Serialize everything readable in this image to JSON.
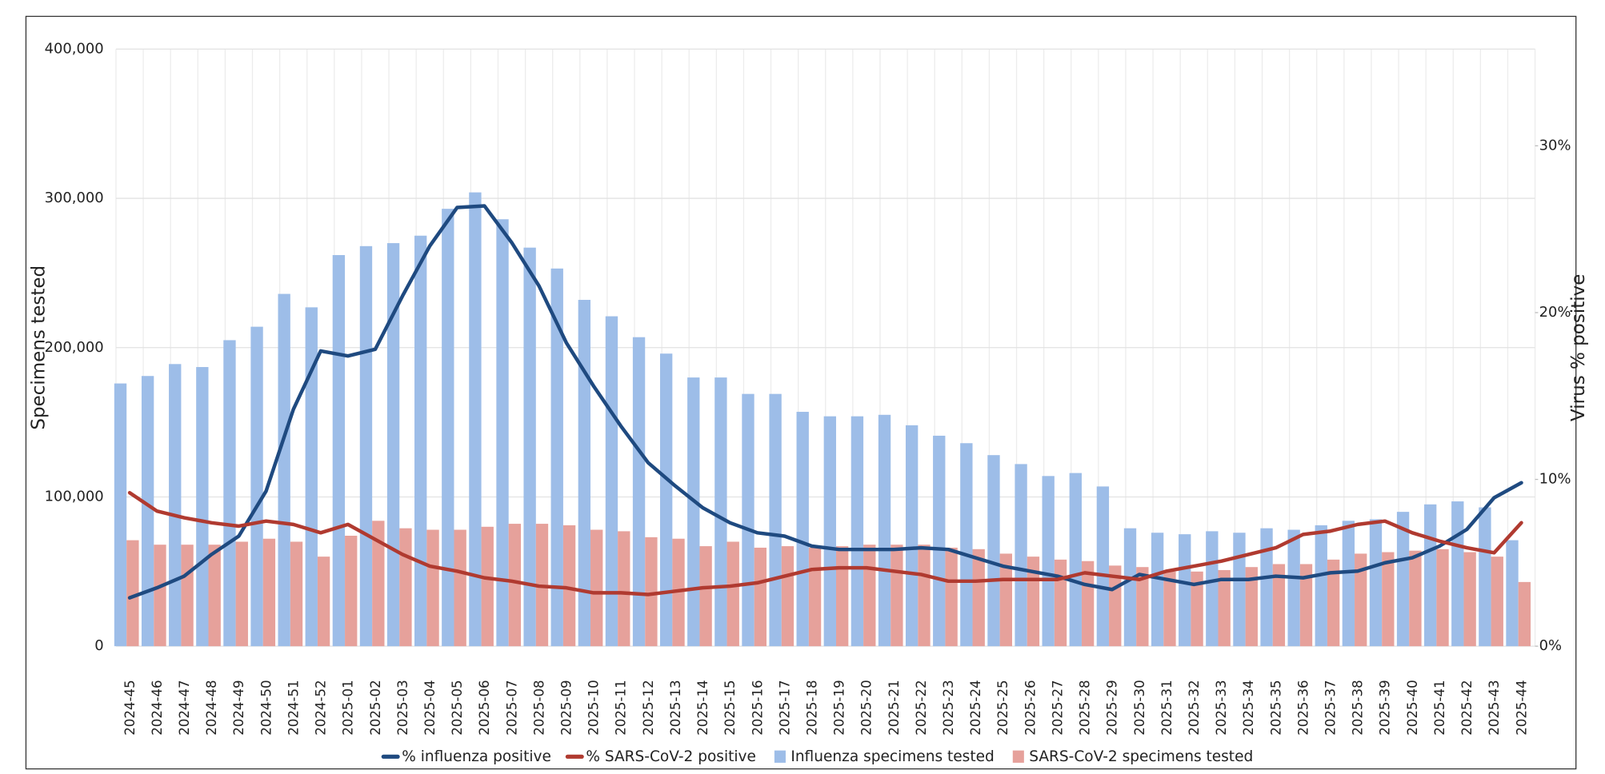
{
  "chart_data": {
    "type": "bar",
    "y_label": "Specimens tested",
    "y2_label": "Virus % positive",
    "categories": [
      "2024-45",
      "2024-46",
      "2024-47",
      "2024-48",
      "2024-49",
      "2024-50",
      "2024-51",
      "2024-52",
      "2025-01",
      "2025-02",
      "2025-03",
      "2025-04",
      "2025-05",
      "2025-06",
      "2025-07",
      "2025-08",
      "2025-09",
      "2025-10",
      "2025-11",
      "2025-12",
      "2025-13",
      "2025-14",
      "2025-15",
      "2025-16",
      "2025-17",
      "2025-18",
      "2025-19",
      "2025-20",
      "2025-21",
      "2025-22",
      "2025-23",
      "2025-24",
      "2025-25",
      "2025-26",
      "2025-27",
      "2025-28",
      "2025-29",
      "2025-30",
      "2025-31",
      "2025-32",
      "2025-33",
      "2025-34",
      "2025-35",
      "2025-36",
      "2025-37",
      "2025-38",
      "2025-39",
      "2025-40",
      "2025-41",
      "2025-42",
      "2025-43",
      "2025-44"
    ],
    "series": [
      {
        "name": "% influenza positive",
        "type": "line",
        "axis": "y2",
        "color": "#1f4a80",
        "values": [
          2.9,
          3.5,
          4.2,
          5.5,
          6.6,
          9.3,
          14.2,
          17.7,
          17.4,
          17.8,
          21.0,
          24.0,
          26.3,
          26.4,
          24.2,
          21.6,
          18.2,
          15.6,
          13.2,
          11.0,
          9.6,
          8.3,
          7.4,
          6.8,
          6.6,
          6.0,
          5.8,
          5.8,
          5.8,
          5.9,
          5.8,
          5.3,
          4.8,
          4.5,
          4.2,
          3.7,
          3.4,
          4.3,
          4.0,
          3.7,
          4.0,
          4.0,
          4.2,
          4.1,
          4.4,
          4.5,
          5.0,
          5.3,
          6.0,
          7.0,
          8.9,
          9.8
        ]
      },
      {
        "name": "% SARS-CoV-2 positive",
        "type": "line",
        "axis": "y2",
        "color": "#b03a30",
        "values": [
          9.2,
          8.1,
          7.7,
          7.4,
          7.2,
          7.5,
          7.3,
          6.8,
          7.3,
          6.4,
          5.5,
          4.8,
          4.5,
          4.1,
          3.9,
          3.6,
          3.5,
          3.2,
          3.2,
          3.1,
          3.3,
          3.5,
          3.6,
          3.8,
          4.2,
          4.6,
          4.7,
          4.7,
          4.5,
          4.3,
          3.9,
          3.9,
          4.0,
          4.0,
          4.0,
          4.4,
          4.2,
          4.0,
          4.5,
          4.8,
          5.1,
          5.5,
          5.9,
          6.7,
          6.9,
          7.3,
          7.5,
          6.8,
          6.3,
          5.9,
          5.6,
          7.4
        ]
      },
      {
        "name": "Influenza specimens tested",
        "type": "bar",
        "color": "#9dbde8",
        "values": [
          176000,
          181000,
          189000,
          187000,
          205000,
          214000,
          236000,
          227000,
          262000,
          268000,
          270000,
          275000,
          293000,
          304000,
          286000,
          267000,
          253000,
          232000,
          221000,
          207000,
          196000,
          180000,
          180000,
          169000,
          169000,
          157000,
          154000,
          154000,
          155000,
          148000,
          141000,
          136000,
          128000,
          122000,
          114000,
          116000,
          107000,
          79000,
          76000,
          75000,
          77000,
          76000,
          79000,
          78000,
          81000,
          84000,
          85000,
          90000,
          95000,
          97000,
          93000,
          71000
        ]
      },
      {
        "name": "SARS-CoV-2 specimens tested",
        "type": "bar",
        "color": "#e6a19b",
        "values": [
          71000,
          68000,
          68000,
          68000,
          70000,
          72000,
          70000,
          60000,
          74000,
          84000,
          79000,
          78000,
          78000,
          80000,
          82000,
          82000,
          81000,
          78000,
          77000,
          73000,
          72000,
          67000,
          70000,
          66000,
          67000,
          66000,
          67000,
          68000,
          68000,
          68000,
          66000,
          65000,
          62000,
          60000,
          58000,
          57000,
          54000,
          53000,
          50000,
          50000,
          51000,
          53000,
          55000,
          55000,
          58000,
          62000,
          63000,
          64000,
          65000,
          63000,
          60000,
          43000
        ]
      }
    ],
    "ylim": [
      0,
      400000
    ],
    "yticks": [
      0,
      {
        "value": 100000,
        "label": "100,000"
      },
      {
        "value": 200000,
        "label": "200,000"
      },
      {
        "value": 300000,
        "label": "300,000"
      },
      {
        "value": 400000,
        "label": "400,000"
      }
    ],
    "y2lim": [
      0,
      35.8
    ],
    "y2ticks": [
      {
        "value": 0,
        "label": "0%"
      },
      {
        "value": 10,
        "label": "10%"
      },
      {
        "value": 20,
        "label": "20%"
      },
      {
        "value": 30,
        "label": "30%"
      }
    ],
    "grid": true,
    "legend": "bottom"
  }
}
